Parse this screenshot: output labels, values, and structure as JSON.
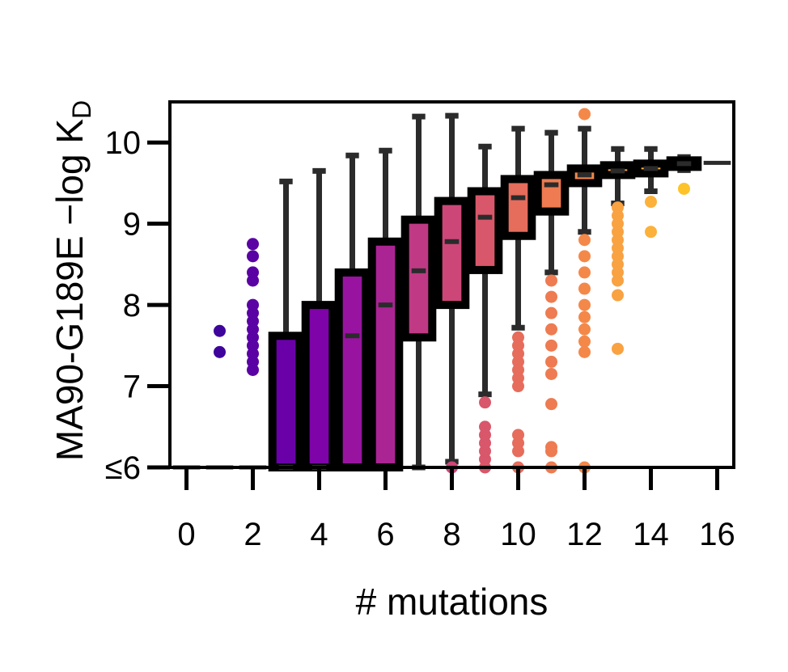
{
  "chart_data": {
    "type": "box",
    "xlabel": "# mutations",
    "ylabel": "MA90-G189E −log K",
    "ylabel_subscript": "D",
    "xlim": [
      -0.5,
      16.5
    ],
    "ylim": [
      6,
      10.5
    ],
    "x_ticks": [
      0,
      2,
      4,
      6,
      8,
      10,
      12,
      14,
      16
    ],
    "y_ticks": [
      {
        "value": 6,
        "label": "≤6"
      },
      {
        "value": 7,
        "label": "7"
      },
      {
        "value": 8,
        "label": "8"
      },
      {
        "value": 9,
        "label": "9"
      },
      {
        "value": 10,
        "label": "10"
      }
    ],
    "boxes": [
      {
        "x": 0,
        "q1": 6.0,
        "median": 6.0,
        "q3": 6.0,
        "whisker_low": 6.0,
        "whisker_high": 6.0,
        "color": "#0d0887",
        "outliers": []
      },
      {
        "x": 1,
        "q1": 6.0,
        "median": 6.0,
        "q3": 6.0,
        "whisker_low": 6.0,
        "whisker_high": 6.0,
        "color": "#3e049c",
        "outliers": [
          7.42,
          7.68
        ]
      },
      {
        "x": 2,
        "q1": 6.0,
        "median": 6.0,
        "q3": 6.0,
        "whisker_low": 6.0,
        "whisker_high": 6.0,
        "color": "#5a02a3",
        "outliers": [
          7.2,
          7.3,
          7.4,
          7.5,
          7.6,
          7.7,
          7.8,
          7.9,
          8.0,
          8.3,
          8.4,
          8.6,
          8.75
        ]
      },
      {
        "x": 3,
        "q1": 6.0,
        "median": 6.0,
        "q3": 7.62,
        "whisker_low": 6.0,
        "whisker_high": 9.52,
        "color": "#6a00a8",
        "outliers": []
      },
      {
        "x": 4,
        "q1": 6.0,
        "median": 6.0,
        "q3": 8.0,
        "whisker_low": 6.0,
        "whisker_high": 9.65,
        "color": "#7e03a8",
        "outliers": []
      },
      {
        "x": 5,
        "q1": 6.0,
        "median": 7.62,
        "q3": 8.4,
        "whisker_low": 6.0,
        "whisker_high": 9.84,
        "color": "#9814a0",
        "outliers": []
      },
      {
        "x": 6,
        "q1": 6.0,
        "median": 8.0,
        "q3": 8.78,
        "whisker_low": 6.0,
        "whisker_high": 9.9,
        "color": "#ab2494",
        "outliers": []
      },
      {
        "x": 7,
        "q1": 7.6,
        "median": 8.42,
        "q3": 9.05,
        "whisker_low": 6.0,
        "whisker_high": 10.32,
        "color": "#bf3984",
        "outliers": []
      },
      {
        "x": 8,
        "q1": 8.0,
        "median": 8.78,
        "q3": 9.28,
        "whisker_low": 6.07,
        "whisker_high": 10.33,
        "color": "#cc4778",
        "outliers": [
          6.0
        ]
      },
      {
        "x": 9,
        "q1": 8.43,
        "median": 9.08,
        "q3": 9.4,
        "whisker_low": 6.9,
        "whisker_high": 9.95,
        "color": "#d9576a",
        "outliers": [
          6.0,
          6.1,
          6.2,
          6.3,
          6.4,
          6.5,
          6.8
        ]
      },
      {
        "x": 10,
        "q1": 8.85,
        "median": 9.32,
        "q3": 9.55,
        "whisker_low": 7.72,
        "whisker_high": 10.17,
        "color": "#e66c5c",
        "outliers": [
          6.0,
          6.2,
          6.3,
          6.4,
          7.0,
          7.1,
          7.2,
          7.3,
          7.4,
          7.5,
          7.6
        ]
      },
      {
        "x": 11,
        "q1": 9.15,
        "median": 9.48,
        "q3": 9.6,
        "whisker_low": 8.4,
        "whisker_high": 10.12,
        "color": "#ee7b51",
        "outliers": [
          6.0,
          6.2,
          6.25,
          6.78,
          7.15,
          7.3,
          7.5,
          7.7,
          7.9,
          8.1,
          8.3
        ]
      },
      {
        "x": 12,
        "q1": 9.5,
        "median": 9.6,
        "q3": 9.68,
        "whisker_low": 8.9,
        "whisker_high": 10.17,
        "color": "#f48849",
        "outliers": [
          6.0,
          7.42,
          7.55,
          7.7,
          7.85,
          8.0,
          8.2,
          8.4,
          8.6,
          8.8,
          10.35
        ]
      },
      {
        "x": 13,
        "q1": 9.6,
        "median": 9.65,
        "q3": 9.72,
        "whisker_low": 9.25,
        "whisker_high": 9.92,
        "color": "#f9a242",
        "outliers": [
          7.46,
          8.12,
          8.3,
          8.4,
          8.5,
          8.6,
          8.7,
          8.8,
          8.9,
          9.0,
          9.1,
          9.2
        ]
      },
      {
        "x": 14,
        "q1": 9.62,
        "median": 9.68,
        "q3": 9.74,
        "whisker_low": 9.4,
        "whisker_high": 9.92,
        "color": "#fcb13a",
        "outliers": [
          8.9,
          9.27
        ]
      },
      {
        "x": 15,
        "q1": 9.7,
        "median": 9.74,
        "q3": 9.78,
        "whisker_low": 9.66,
        "whisker_high": 9.82,
        "color": "#fdc328",
        "outliers": [
          9.43
        ]
      },
      {
        "x": 16,
        "q1": 9.75,
        "median": 9.75,
        "q3": 9.75,
        "whisker_low": 9.75,
        "whisker_high": 9.75,
        "color": "#f0f921",
        "outliers": []
      }
    ]
  }
}
